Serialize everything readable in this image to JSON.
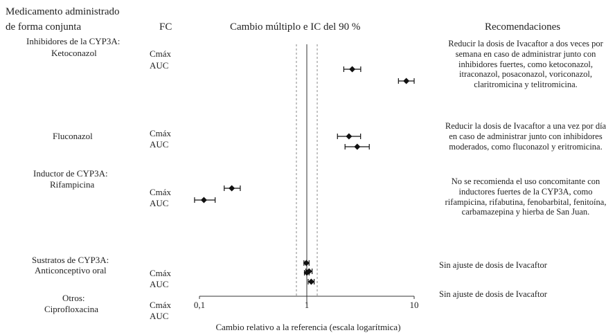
{
  "headers": {
    "drug_line1": "Medicamento administrado",
    "drug_line2": "de forma conjunta",
    "pk": "FC",
    "chart_title": "Cambio múltiplo e IC del 90 %",
    "recommendations": "Recomendaciones"
  },
  "groups": {
    "g1": {
      "label": "Inhibidores de la CYP3A:",
      "drug": "Ketoconazol"
    },
    "g2": {
      "drug": "Fluconazol"
    },
    "g3": {
      "label": "Inductor de CYP3A:",
      "drug": "Rifampicina"
    },
    "g4": {
      "label": "Sustratos de CYP3A:",
      "drug": "Anticonceptivo oral"
    },
    "g5": {
      "label": "Otros:",
      "drug": "Ciprofloxacina"
    }
  },
  "pk_labels": {
    "cmax": "Cmáx",
    "auc": "AUC"
  },
  "recommendations": {
    "r1": "Reducir la dosis de Ivacaftor a dos veces por semana en caso de administrar junto con inhibidores fuertes, como ketoconazol, itraconazol, posaconazol, voriconazol, claritromicina y telitromicina.",
    "r2": "Reducir la dosis de Ivacaftor a una vez por día en caso de administrar junto con inhibidores moderados, como fluconazol y eritromicina.",
    "r3": "No se recomienda el uso concomitante con inductores fuertes de la CYP3A, como rifampicina, rifabutina, fenobarbital, fenitoína, carbamazepina y hierba de San Juan.",
    "r4": "Sin ajuste de dosis de Ivacaftor",
    "r5": "Sin ajuste de dosis de Ivacaftor"
  },
  "colors": {
    "marker": "#111111",
    "axis": "#333333",
    "dashed": "#888888"
  },
  "chart_data": {
    "type": "forest",
    "title": "Cambio múltiplo e IC del 90 %",
    "xlabel": "Cambio relativo a la referencia (escala logarítmica)",
    "x_scale": "log",
    "xlim": [
      0.1,
      10
    ],
    "x_ticks": [
      0.1,
      1,
      10
    ],
    "x_tick_labels": [
      "0,1",
      "1",
      "10"
    ],
    "reference_line": 1,
    "bounds_lines": [
      0.8,
      1.25
    ],
    "rows": [
      {
        "drug": "Ketoconazol",
        "pk": "Cmáx",
        "value": 2.65,
        "lo": 2.21,
        "hi": 3.18
      },
      {
        "drug": "Ketoconazol",
        "pk": "AUC",
        "value": 8.45,
        "lo": 7.14,
        "hi": 10.0
      },
      {
        "drug": "Fluconazol",
        "pk": "Cmáx",
        "value": 2.47,
        "lo": 1.93,
        "hi": 3.17
      },
      {
        "drug": "Fluconazol",
        "pk": "AUC",
        "value": 2.95,
        "lo": 2.27,
        "hi": 3.82
      },
      {
        "drug": "Rifampicina",
        "pk": "Cmáx",
        "value": 0.2,
        "lo": 0.17,
        "hi": 0.24
      },
      {
        "drug": "Rifampicina",
        "pk": "AUC",
        "value": 0.11,
        "lo": 0.09,
        "hi": 0.14
      },
      {
        "drug": "Anticonceptivo oral",
        "pk": "Cmáx",
        "value": 0.99,
        "lo": 0.94,
        "hi": 1.05
      },
      {
        "drug": "Anticonceptivo oral",
        "pk": "AUC",
        "value": 1.0,
        "lo": 0.95,
        "hi": 1.05
      },
      {
        "drug": "Ciprofloxacina",
        "pk": "Cmáx",
        "value": 1.05,
        "lo": 0.98,
        "hi": 1.12
      },
      {
        "drug": "Ciprofloxacina",
        "pk": "AUC",
        "value": 1.1,
        "lo": 1.03,
        "hi": 1.17
      }
    ]
  }
}
